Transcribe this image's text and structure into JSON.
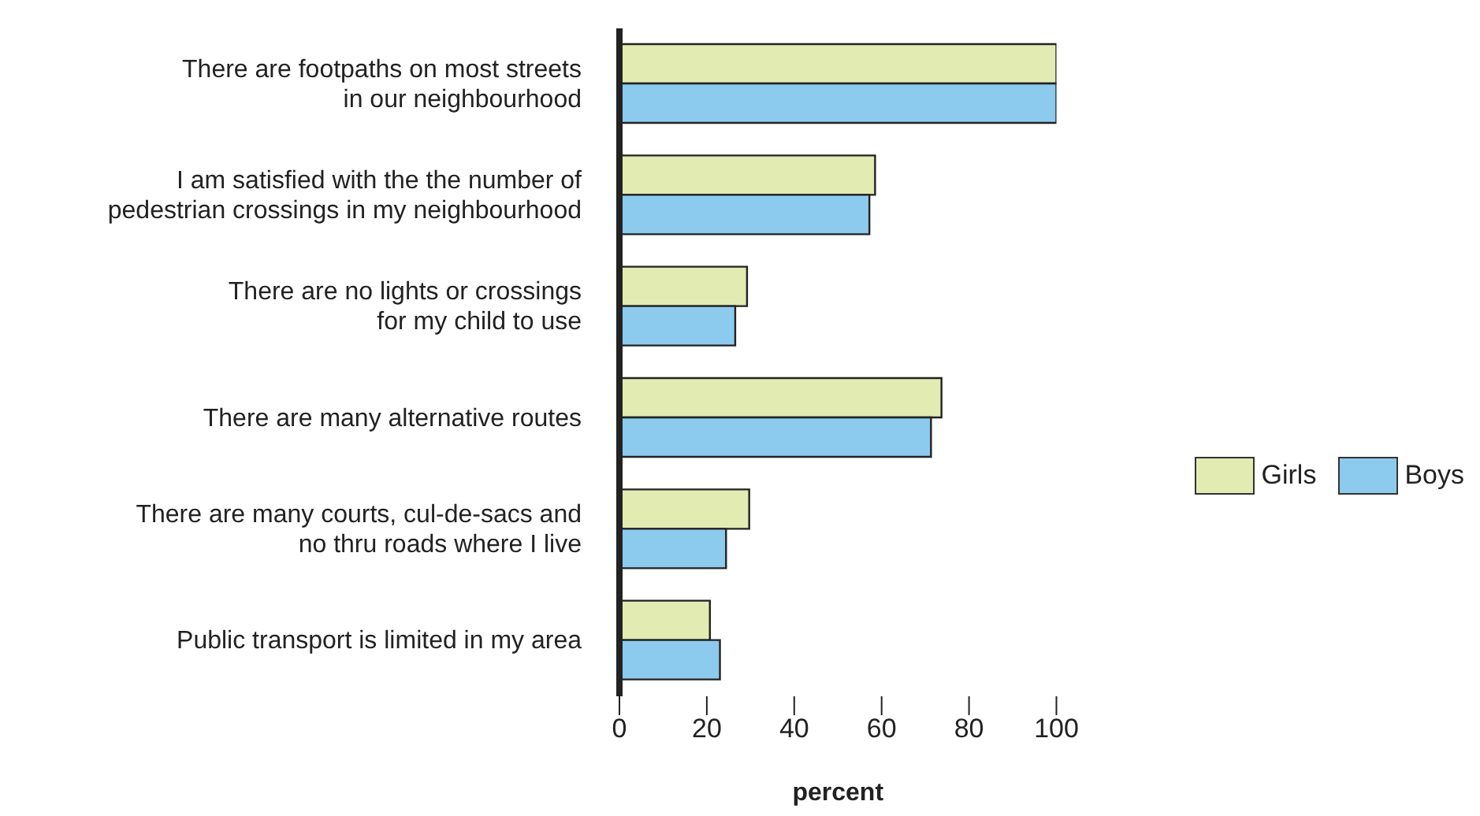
{
  "chart_data": {
    "type": "bar",
    "orientation": "horizontal",
    "xlabel": "percent",
    "categories": [
      "There are footpaths on most streets\nin our neighbourhood",
      "I am satisfied with the the number of\npedestrian crossings in my neighbourhood",
      "There are no lights or crossings\nfor my child to use",
      "There are many alternative routes",
      "There are many courts, cul-de-sacs and\nno thru roads where I live",
      "Public transport is limited in my area"
    ],
    "series": [
      {
        "name": "Girls",
        "color": "#e2ebb2",
        "values": [
          100,
          58.5,
          29.2,
          73.7,
          29.7,
          20.7
        ]
      },
      {
        "name": "Boys",
        "color": "#8ccbee",
        "values": [
          100,
          57.2,
          26.5,
          71.3,
          24.4,
          23
        ]
      }
    ],
    "xlim": [
      0,
      100
    ],
    "xticks": [
      0,
      20,
      40,
      60,
      80,
      100
    ],
    "grid": false,
    "legend": "right"
  }
}
